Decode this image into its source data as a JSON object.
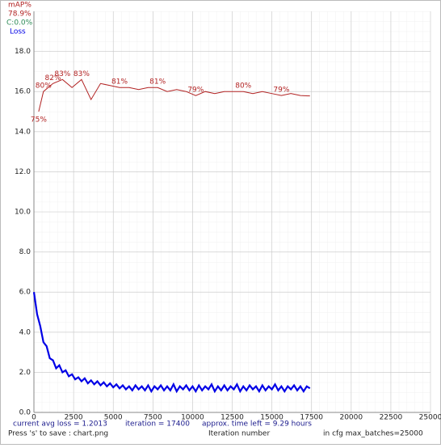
{
  "chart_data": {
    "type": "line",
    "xlabel": "Iteration number",
    "xlim": [
      0,
      25000
    ],
    "xticks": [
      0,
      2500,
      5000,
      7500,
      10000,
      12500,
      15000,
      17500,
      20000,
      22500,
      25000
    ],
    "ylim": [
      0,
      20
    ],
    "yticks": [
      {
        "value": 0,
        "label": "0.0"
      },
      {
        "value": 2,
        "label": "2.0"
      },
      {
        "value": 4,
        "label": "4.0"
      },
      {
        "value": 6,
        "label": "6.0"
      },
      {
        "value": 8,
        "label": "8.0"
      },
      {
        "value": 10,
        "label": "10.0"
      },
      {
        "value": 12,
        "label": "12.0"
      },
      {
        "value": 14,
        "label": "14.0"
      },
      {
        "value": 16,
        "label": "16.0"
      },
      {
        "value": 18,
        "label": "18.0"
      }
    ],
    "y2lim": [
      0,
      100
    ],
    "grid": true,
    "legend": "top-left",
    "legend_texts": [
      {
        "text": "78.9%",
        "color": "#b22222"
      },
      {
        "text": "C:0.0%",
        "color": "#2e8b57"
      }
    ],
    "series": [
      {
        "name": "mAP%",
        "color": "#b22222",
        "axis": "y2",
        "x": [
          300,
          600,
          1200,
          1800,
          2400,
          3000,
          3600,
          4200,
          4800,
          5400,
          6000,
          6600,
          7200,
          7800,
          8400,
          9000,
          9600,
          10200,
          10800,
          11400,
          12000,
          12600,
          13200,
          13800,
          14400,
          15000,
          15600,
          16200,
          16800,
          17400
        ],
        "values": [
          75,
          80,
          82,
          83,
          81,
          83,
          78,
          82,
          81.5,
          81,
          81,
          80.5,
          81,
          81,
          80,
          80.5,
          80,
          79,
          80,
          79.5,
          80,
          80,
          80,
          79.5,
          80,
          79.5,
          79,
          79.5,
          79,
          78.9
        ],
        "value_labels": [
          "75%",
          "80%",
          "82%",
          "83%",
          null,
          "83%",
          null,
          null,
          null,
          "81%",
          null,
          null,
          null,
          "81%",
          null,
          null,
          null,
          "79%",
          null,
          null,
          null,
          null,
          "80%",
          null,
          null,
          null,
          "79%",
          null,
          null,
          null
        ]
      },
      {
        "name": "Loss",
        "color": "#0000e6",
        "x": [
          0,
          200,
          400,
          600,
          800,
          1000,
          1200,
          1400,
          1600,
          1800,
          2000,
          2200,
          2400,
          2600,
          2800,
          3000,
          3200,
          3400,
          3600,
          3800,
          4000,
          4200,
          4400,
          4600,
          4800,
          5000,
          5200,
          5400,
          5600,
          5800,
          6000,
          6200,
          6400,
          6600,
          6800,
          7000,
          7200,
          7400,
          7600,
          7800,
          8000,
          8200,
          8400,
          8600,
          8800,
          9000,
          9200,
          9400,
          9600,
          9800,
          10000,
          10200,
          10400,
          10600,
          10800,
          11000,
          11200,
          11400,
          11600,
          11800,
          12000,
          12200,
          12400,
          12600,
          12800,
          13000,
          13200,
          13400,
          13600,
          13800,
          14000,
          14200,
          14400,
          14600,
          14800,
          15000,
          15200,
          15400,
          15600,
          15800,
          16000,
          16200,
          16400,
          16600,
          16800,
          17000,
          17200,
          17400
        ],
        "values": [
          6.0,
          4.9,
          4.3,
          3.5,
          3.3,
          2.7,
          2.6,
          2.2,
          2.35,
          2.0,
          2.1,
          1.8,
          1.9,
          1.65,
          1.75,
          1.55,
          1.7,
          1.45,
          1.6,
          1.4,
          1.55,
          1.35,
          1.5,
          1.3,
          1.45,
          1.25,
          1.4,
          1.2,
          1.35,
          1.15,
          1.3,
          1.1,
          1.35,
          1.15,
          1.3,
          1.1,
          1.35,
          1.05,
          1.3,
          1.15,
          1.35,
          1.1,
          1.3,
          1.1,
          1.4,
          1.05,
          1.3,
          1.15,
          1.35,
          1.1,
          1.3,
          1.05,
          1.35,
          1.1,
          1.3,
          1.15,
          1.4,
          1.05,
          1.3,
          1.1,
          1.35,
          1.1,
          1.3,
          1.15,
          1.4,
          1.05,
          1.3,
          1.1,
          1.35,
          1.15,
          1.3,
          1.05,
          1.35,
          1.1,
          1.3,
          1.15,
          1.4,
          1.1,
          1.3,
          1.05,
          1.3,
          1.15,
          1.35,
          1.1,
          1.3,
          1.05,
          1.3,
          1.2
        ]
      }
    ],
    "annotations": [
      "current avg loss = 1.2013",
      "iteration = 17400",
      "approx. time left = 9.29 hours",
      "Press 's' to save : chart.png",
      "in cfg max_batches=25000"
    ]
  }
}
